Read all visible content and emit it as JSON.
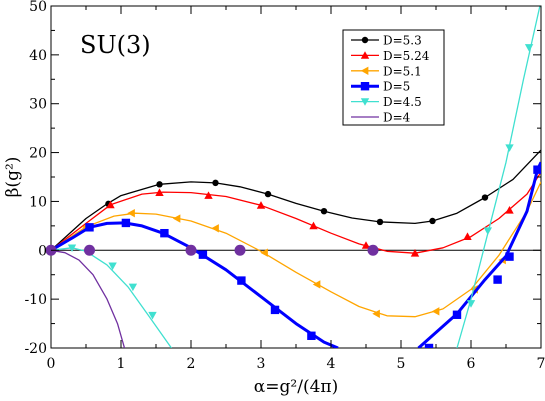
{
  "chart_data": {
    "type": "line",
    "title": "SU(3)",
    "xlabel": "α=g²/(4π)",
    "ylabel": "β(g²)",
    "xlim": [
      0,
      7
    ],
    "ylim": [
      -20,
      50
    ],
    "xticks": [
      0,
      1,
      2,
      3,
      4,
      5,
      6,
      7
    ],
    "yticks": [
      -20,
      -10,
      0,
      10,
      20,
      30,
      40,
      50
    ],
    "xtick_labels": [
      "0",
      "1",
      "2",
      "3",
      "4",
      "5",
      "6",
      "7"
    ],
    "ytick_labels": [
      "-20",
      "-10",
      "0",
      "10",
      "20",
      "30",
      "40",
      "50"
    ],
    "grid": false,
    "legend_position": "top-right",
    "zero_line": true,
    "series": [
      {
        "name": "D=5.3",
        "color": "#000000",
        "marker": "circle",
        "width": 1.3,
        "points": [
          [
            0,
            0
          ],
          [
            0.5,
            6.5
          ],
          [
            0.8,
            9.5
          ],
          [
            1.0,
            11.2
          ],
          [
            1.55,
            13.5
          ],
          [
            2.0,
            14.0
          ],
          [
            2.35,
            13.8
          ],
          [
            2.7,
            13.0
          ],
          [
            3.1,
            11.5
          ],
          [
            3.5,
            9.6
          ],
          [
            3.9,
            8.0
          ],
          [
            4.3,
            6.6
          ],
          [
            4.7,
            5.8
          ],
          [
            5.2,
            5.5
          ],
          [
            5.45,
            6.0
          ],
          [
            5.8,
            7.6
          ],
          [
            6.2,
            10.8
          ],
          [
            6.6,
            14.5
          ],
          [
            7.0,
            20.5
          ]
        ],
        "markers": [
          [
            0.82,
            9.5
          ],
          [
            1.55,
            13.5
          ],
          [
            2.35,
            13.8
          ],
          [
            3.1,
            11.5
          ],
          [
            3.9,
            8.0
          ],
          [
            4.7,
            5.8
          ],
          [
            5.45,
            6.0
          ],
          [
            6.2,
            10.8
          ]
        ]
      },
      {
        "name": "D=5.24",
        "color": "#ff0000",
        "marker": "triangle-up",
        "width": 1.3,
        "points": [
          [
            0,
            0
          ],
          [
            0.5,
            5.5
          ],
          [
            0.85,
            9.3
          ],
          [
            1.3,
            11.5
          ],
          [
            1.6,
            11.9
          ],
          [
            2.0,
            11.8
          ],
          [
            2.5,
            11.0
          ],
          [
            3.0,
            9.2
          ],
          [
            3.5,
            6.5
          ],
          [
            4.0,
            3.5
          ],
          [
            4.4,
            1.3
          ],
          [
            4.8,
            -0.2
          ],
          [
            5.2,
            -0.6
          ],
          [
            5.6,
            0.5
          ],
          [
            6.0,
            2.8
          ],
          [
            6.4,
            6.5
          ],
          [
            6.8,
            11.5
          ],
          [
            7.0,
            16.0
          ]
        ],
        "markers": [
          [
            0.85,
            9.3
          ],
          [
            1.55,
            11.8
          ],
          [
            2.25,
            11.2
          ],
          [
            3.0,
            9.2
          ],
          [
            3.75,
            5.0
          ],
          [
            4.5,
            1.0
          ],
          [
            5.2,
            -0.6
          ],
          [
            5.95,
            2.8
          ],
          [
            6.55,
            8.2
          ]
        ]
      },
      {
        "name": "D=5.1",
        "color": "#ffa500",
        "marker": "triangle-left",
        "width": 1.3,
        "points": [
          [
            0,
            0
          ],
          [
            0.5,
            4.8
          ],
          [
            0.9,
            7.0
          ],
          [
            1.2,
            7.6
          ],
          [
            1.5,
            7.4
          ],
          [
            2.0,
            6.0
          ],
          [
            2.5,
            3.5
          ],
          [
            3.0,
            -0.2
          ],
          [
            3.5,
            -4.5
          ],
          [
            4.0,
            -8.5
          ],
          [
            4.4,
            -11.5
          ],
          [
            4.8,
            -13.4
          ],
          [
            5.2,
            -13.6
          ],
          [
            5.6,
            -12.0
          ],
          [
            6.0,
            -8.0
          ],
          [
            6.4,
            -1.0
          ],
          [
            6.8,
            8.0
          ],
          [
            7.0,
            14.0
          ]
        ],
        "markers": [
          [
            0.5,
            4.8
          ],
          [
            1.15,
            7.6
          ],
          [
            1.8,
            6.5
          ],
          [
            2.35,
            4.5
          ],
          [
            3.05,
            -0.5
          ],
          [
            3.8,
            -7.0
          ],
          [
            4.65,
            -13.0
          ],
          [
            5.5,
            -12.5
          ],
          [
            6.05,
            -8.0
          ],
          [
            6.45,
            -2.0
          ]
        ]
      },
      {
        "name": "D=5",
        "color": "#0000ff",
        "marker": "square",
        "width": 3,
        "points": [
          [
            0,
            0
          ],
          [
            0.3,
            2.5
          ],
          [
            0.55,
            4.7
          ],
          [
            0.8,
            5.5
          ],
          [
            1.05,
            5.6
          ],
          [
            1.3,
            5.0
          ],
          [
            1.6,
            3.5
          ],
          [
            2.0,
            0.5
          ],
          [
            2.5,
            -4.0
          ],
          [
            3.0,
            -9.5
          ],
          [
            3.5,
            -15.0
          ],
          [
            3.9,
            -18.8
          ],
          [
            4.1,
            -20.0
          ]
        ],
        "points2": [
          [
            5.25,
            -20.0
          ],
          [
            5.8,
            -13.0
          ],
          [
            6.2,
            -6.0
          ],
          [
            6.5,
            -1.2
          ],
          [
            6.8,
            8.0
          ],
          [
            6.95,
            16.5
          ],
          [
            7.0,
            18.0
          ]
        ],
        "markers": [
          [
            0.55,
            4.7
          ],
          [
            1.07,
            5.6
          ],
          [
            1.62,
            3.5
          ],
          [
            2.17,
            -0.9
          ],
          [
            2.72,
            -6.2
          ],
          [
            3.2,
            -12.2
          ],
          [
            3.72,
            -17.5
          ],
          [
            5.4,
            -20.0
          ],
          [
            5.8,
            -13.2
          ],
          [
            6.38,
            -6.0
          ],
          [
            6.55,
            -1.3
          ],
          [
            6.95,
            16.5
          ]
        ]
      },
      {
        "name": "D=4.5",
        "color": "#40e0d0",
        "marker": "triangle-down",
        "width": 1.3,
        "points": [
          [
            0,
            0
          ],
          [
            0.3,
            0.5
          ],
          [
            0.5,
            -0.2
          ],
          [
            0.8,
            -3.0
          ],
          [
            1.1,
            -7.5
          ],
          [
            1.4,
            -13.5
          ],
          [
            1.72,
            -20.0
          ]
        ],
        "points2": [
          [
            5.8,
            -20.0
          ],
          [
            6.0,
            -10.0
          ],
          [
            6.25,
            4.0
          ],
          [
            6.5,
            18.0
          ],
          [
            6.75,
            35.0
          ],
          [
            7.0,
            51.0
          ]
        ],
        "markers": [
          [
            0.3,
            0.5
          ],
          [
            0.88,
            -3.2
          ],
          [
            1.17,
            -7.5
          ],
          [
            1.45,
            -13.3
          ],
          [
            6.0,
            -10.9
          ],
          [
            6.24,
            4.0
          ],
          [
            6.55,
            21.0
          ],
          [
            6.83,
            41.5
          ]
        ]
      },
      {
        "name": "D=4",
        "color": "#7030a0",
        "marker": "none",
        "width": 1.3,
        "points": [
          [
            0,
            0
          ],
          [
            0.2,
            -0.5
          ],
          [
            0.4,
            -2.0
          ],
          [
            0.6,
            -5.0
          ],
          [
            0.8,
            -10.0
          ],
          [
            0.95,
            -15.0
          ],
          [
            1.05,
            -20.0
          ]
        ],
        "markers": []
      }
    ],
    "zeros": [
      [
        0,
        0
      ],
      [
        0.55,
        0
      ],
      [
        2.0,
        0
      ],
      [
        2.7,
        0
      ],
      [
        4.6,
        0
      ]
    ],
    "zero_marker_color": "#7030a0"
  }
}
